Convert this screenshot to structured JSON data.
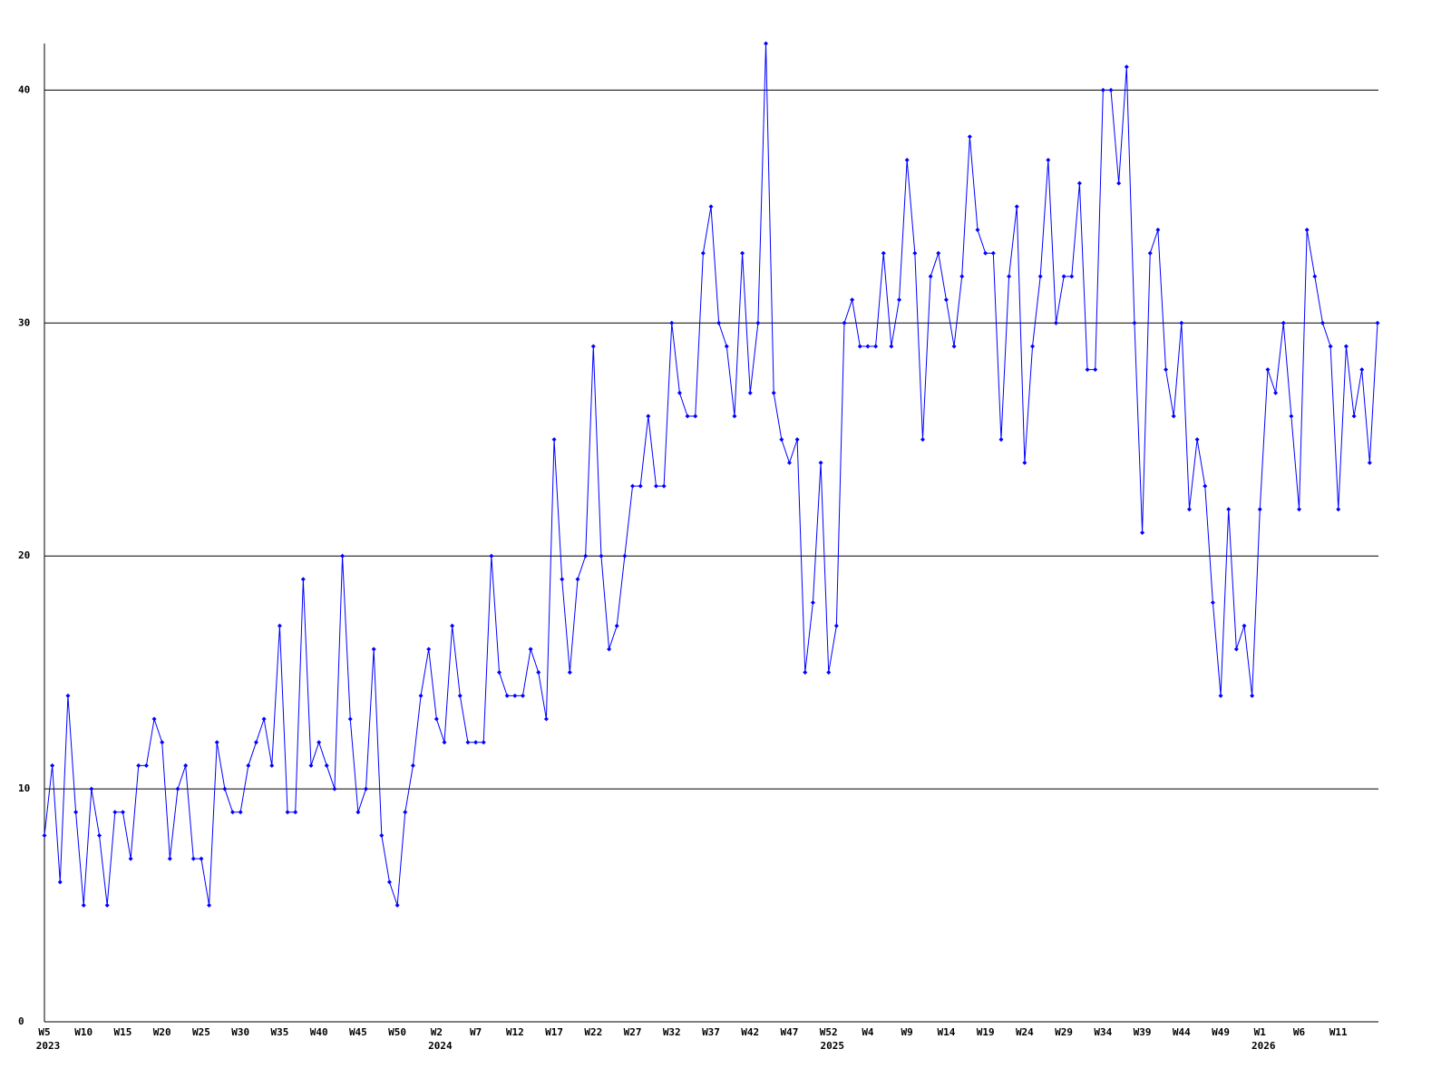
{
  "chart_data": {
    "type": "line",
    "color": "#0000ff",
    "grid": true,
    "ylim": [
      0,
      42
    ],
    "yticks": [
      0,
      10,
      20,
      30,
      40
    ],
    "categories": [
      "W5",
      null,
      null,
      null,
      null,
      "W10",
      null,
      null,
      null,
      null,
      "W15",
      null,
      null,
      null,
      null,
      "W20",
      null,
      null,
      null,
      null,
      "W25",
      null,
      null,
      null,
      null,
      "W30",
      null,
      null,
      null,
      null,
      "W35",
      null,
      null,
      null,
      null,
      "W40",
      null,
      null,
      null,
      null,
      "W45",
      null,
      null,
      null,
      null,
      "W50",
      null,
      null,
      null,
      null,
      "W2",
      null,
      null,
      null,
      null,
      "W7",
      null,
      null,
      null,
      null,
      "W12",
      null,
      null,
      null,
      null,
      "W17",
      null,
      null,
      null,
      null,
      "W22",
      null,
      null,
      null,
      null,
      "W27",
      null,
      null,
      null,
      null,
      "W32",
      null,
      null,
      null,
      null,
      "W37",
      null,
      null,
      null,
      null,
      "W42",
      null,
      null,
      null,
      null,
      "W47",
      null,
      null,
      null,
      null,
      "W52",
      null,
      null,
      null,
      null,
      "W4",
      null,
      null,
      null,
      null,
      "W9",
      null,
      null,
      null,
      null,
      "W14",
      null,
      null,
      null,
      null,
      "W19",
      null,
      null,
      null,
      null,
      "W24",
      null,
      null,
      null,
      null,
      "W29",
      null,
      null,
      null,
      null,
      "W34",
      null,
      null,
      null,
      null,
      "W39",
      null,
      null,
      null,
      null,
      "W44",
      null,
      null,
      null,
      null,
      "W49",
      null,
      null,
      null,
      null,
      "W1",
      null,
      null,
      null,
      null,
      "W6",
      null,
      null,
      null,
      null,
      "W11",
      null,
      null,
      null,
      null,
      null
    ],
    "years": [
      "2023",
      null,
      null,
      null,
      null,
      null,
      null,
      null,
      null,
      null,
      null,
      null,
      null,
      null,
      null,
      null,
      null,
      null,
      null,
      null,
      null,
      null,
      null,
      null,
      null,
      null,
      null,
      null,
      null,
      null,
      null,
      null,
      null,
      null,
      null,
      null,
      null,
      null,
      null,
      null,
      null,
      null,
      null,
      null,
      null,
      null,
      null,
      null,
      null,
      null,
      "2024",
      null,
      null,
      null,
      null,
      null,
      null,
      null,
      null,
      null,
      null,
      null,
      null,
      null,
      null,
      null,
      null,
      null,
      null,
      null,
      null,
      null,
      null,
      null,
      null,
      null,
      null,
      null,
      null,
      null,
      null,
      null,
      null,
      null,
      null,
      null,
      null,
      null,
      null,
      null,
      null,
      null,
      null,
      null,
      null,
      null,
      null,
      null,
      null,
      null,
      "2025",
      null,
      null,
      null,
      null,
      null,
      null,
      null,
      null,
      null,
      null,
      null,
      null,
      null,
      null,
      null,
      null,
      null,
      null,
      null,
      null,
      null,
      null,
      null,
      null,
      null,
      null,
      null,
      null,
      null,
      null,
      null,
      null,
      null,
      null,
      null,
      null,
      null,
      null,
      null,
      null,
      null,
      null,
      null,
      null,
      null,
      null,
      null,
      null,
      null,
      null,
      null,
      null,
      null,
      null,
      "2026",
      null,
      null,
      null,
      null,
      null,
      null,
      null,
      null,
      null,
      null,
      null,
      null,
      null,
      null,
      null
    ],
    "values": [
      8,
      11,
      6,
      14,
      9,
      5,
      10,
      8,
      5,
      9,
      9,
      7,
      11,
      11,
      13,
      12,
      7,
      10,
      11,
      7,
      7,
      5,
      12,
      10,
      9,
      9,
      11,
      12,
      13,
      11,
      17,
      9,
      9,
      19,
      11,
      12,
      11,
      10,
      20,
      13,
      9,
      10,
      16,
      8,
      6,
      5,
      9,
      11,
      14,
      16,
      13,
      12,
      17,
      14,
      12,
      12,
      12,
      20,
      15,
      14,
      14,
      14,
      16,
      15,
      13,
      25,
      19,
      15,
      19,
      20,
      29,
      20,
      16,
      17,
      20,
      23,
      23,
      26,
      23,
      23,
      30,
      27,
      26,
      26,
      33,
      35,
      30,
      29,
      26,
      33,
      27,
      30,
      42,
      27,
      25,
      24,
      25,
      15,
      18,
      24,
      15,
      17,
      30,
      31,
      29,
      29,
      29,
      33,
      29,
      31,
      37,
      33,
      25,
      32,
      33,
      31,
      29,
      32,
      38,
      34,
      33,
      33,
      25,
      32,
      35,
      24,
      29,
      32,
      37,
      30,
      32,
      32,
      36,
      28,
      28,
      40,
      40,
      36,
      41,
      30,
      21,
      33,
      34,
      28,
      26,
      30,
      22,
      25,
      23,
      18,
      14,
      22,
      16,
      17,
      14,
      22,
      28,
      27,
      30,
      26,
      22,
      34,
      32,
      30,
      29,
      22,
      29,
      26,
      28,
      24,
      30
    ]
  }
}
